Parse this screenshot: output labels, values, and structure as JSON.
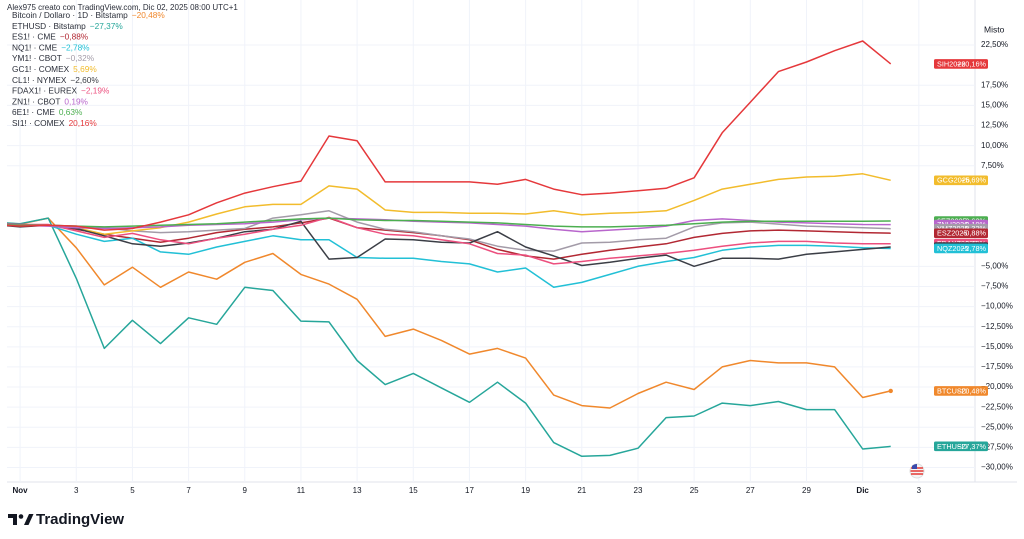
{
  "watermark": "Alex975 creato con TradingView.com, Dic 02, 2025 08:00 UTC+1",
  "brand": "TradingView",
  "chart_data": {
    "type": "line",
    "scale_mode": "Misto",
    "categories": [
      null,
      "Nov",
      null,
      "3",
      null,
      "5",
      null,
      "7",
      null,
      "9",
      null,
      "11",
      null,
      "13",
      null,
      "15",
      null,
      "17",
      null,
      "19",
      null,
      "21",
      null,
      "23",
      null,
      "25",
      null,
      "27",
      null,
      "29",
      null,
      "Dic",
      null,
      "3",
      null
    ],
    "ylim": [
      -31.8,
      28.1
    ],
    "yticks": [
      {
        "value": 22.5,
        "label": "22,50%"
      },
      {
        "value": 17.5,
        "label": "17,50%"
      },
      {
        "value": 15,
        "label": "15,00%"
      },
      {
        "value": 12.5,
        "label": "12,50%"
      },
      {
        "value": 10,
        "label": "10,00%"
      },
      {
        "value": 7.5,
        "label": "7,50%"
      },
      {
        "value": -5,
        "label": "−5,00%"
      },
      {
        "value": -7.5,
        "label": "−7,50%"
      },
      {
        "value": -10,
        "label": "−10,00%"
      },
      {
        "value": -12.5,
        "label": "−12,50%"
      },
      {
        "value": -15,
        "label": "−15,00%"
      },
      {
        "value": -17.5,
        "label": "−17,50%"
      },
      {
        "value": -20,
        "label": "−20,00%"
      },
      {
        "value": -22.5,
        "label": "−22,50%"
      },
      {
        "value": -25,
        "label": "−25,00%"
      },
      {
        "value": -27.5,
        "label": "−27,50%"
      },
      {
        "value": -30,
        "label": "−30,00%"
      }
    ],
    "grid": true,
    "series": [
      {
        "name": "Bitcoin / Dollaro · 1D · Bitstamp",
        "legend_value": "−20,48%",
        "tag": "BTCUSD",
        "tag_value": "−20,48%",
        "color": "#f0882c",
        "values": [
          0.5,
          0.25,
          1.0,
          -2.7,
          -7.3,
          -5.1,
          -7.6,
          -5.7,
          -6.6,
          -4.5,
          -3.4,
          -6.0,
          -7.2,
          -9.1,
          -13.7,
          -12.8,
          -14.2,
          -15.9,
          -15.2,
          -16.4,
          -21.0,
          -22.3,
          -22.6,
          -20.8,
          -19.4,
          -20.3,
          -17.5,
          -16.7,
          -17.0,
          -17.0,
          -17.5,
          -21.3,
          -20.48,
          null,
          null
        ]
      },
      {
        "name": "ETHUSD · Bitstamp",
        "legend_value": "−27,37%",
        "tag": "ETHUSD",
        "tag_value": "−27,37%",
        "color": "#26a69a",
        "values": [
          0.5,
          0.3,
          1.0,
          -6.5,
          -15.2,
          -11.7,
          -14.6,
          -11.4,
          -12.2,
          -7.6,
          -8.0,
          -11.8,
          -11.9,
          -16.7,
          -19.7,
          -18.3,
          -20.1,
          -21.9,
          -19.4,
          -22.0,
          -26.9,
          -28.6,
          -28.5,
          -27.6,
          -23.8,
          -23.6,
          -22.0,
          -22.3,
          -21.8,
          -22.8,
          -22.8,
          -27.7,
          -27.37,
          null,
          null
        ]
      },
      {
        "name": "ES1! · CME",
        "legend_value": "−0,88%",
        "tag": "ESZ2025",
        "tag_value": "−0,88%",
        "color": "#b22833",
        "values": [
          0.2,
          0.1,
          0.1,
          -0.4,
          -1.0,
          -1.5,
          -2.0,
          -1.5,
          -0.8,
          -0.4,
          -0.1,
          0.4,
          1.0,
          -0.2,
          -0.5,
          -0.8,
          -1.2,
          -1.7,
          -2.9,
          -3.7,
          -4.1,
          -3.5,
          -3.0,
          -2.6,
          -2.2,
          -1.4,
          -0.9,
          -0.6,
          -0.5,
          -0.6,
          -0.7,
          -0.8,
          -0.88,
          null,
          null
        ]
      },
      {
        "name": "NQ1! · CME",
        "legend_value": "−2,78%",
        "tag": "NQZ2025",
        "tag_value": "−2,78%",
        "color": "#22c0d6",
        "values": [
          0.2,
          0.0,
          0.1,
          -1.0,
          -1.9,
          -1.5,
          -3.2,
          -3.5,
          -2.6,
          -1.9,
          -1.2,
          -1.7,
          -1.7,
          -3.9,
          -4.0,
          -4.0,
          -4.4,
          -4.7,
          -5.7,
          -5.2,
          -7.6,
          -7.0,
          -6.0,
          -5.0,
          -4.4,
          -3.9,
          -3.0,
          -2.6,
          -2.4,
          -2.4,
          -2.5,
          -2.7,
          -2.78,
          null,
          null
        ]
      },
      {
        "name": "YM1! · CBOT",
        "legend_value": "−0,32%",
        "tag": "YMZ2025",
        "tag_value": "−0,32%",
        "color": "#a39ba8",
        "values": [
          0.3,
          0.1,
          0.1,
          0.0,
          -0.2,
          -0.6,
          -0.8,
          -0.7,
          -0.5,
          -0.3,
          1.0,
          1.4,
          1.9,
          0.5,
          -0.4,
          -0.7,
          -1.2,
          -1.6,
          -2.5,
          -3.0,
          -3.1,
          -2.1,
          -2.0,
          -1.7,
          -1.5,
          -0.1,
          0.4,
          0.5,
          0.25,
          0.0,
          -0.1,
          -0.2,
          -0.32,
          null,
          null
        ]
      },
      {
        "name": "GC1! · COMEX",
        "legend_value": "5,69%",
        "tag": "GCG2026",
        "tag_value": "+5,69%",
        "color": "#f2bc2c",
        "values": [
          0.2,
          0.0,
          0.1,
          -0.2,
          -1.0,
          -0.6,
          -0.2,
          0.5,
          1.5,
          2.4,
          2.7,
          2.7,
          5.0,
          4.6,
          2.0,
          1.7,
          1.7,
          1.6,
          1.6,
          1.5,
          1.9,
          1.4,
          1.6,
          1.7,
          1.9,
          3.2,
          4.6,
          5.2,
          5.8,
          6.1,
          6.2,
          6.5,
          5.69,
          null,
          null
        ]
      },
      {
        "name": "CL1! · NYMEX",
        "legend_value": "−2,60%",
        "tag": "CLF2026",
        "tag_value": "−2,60%",
        "color": "#3b3e46",
        "values": [
          0.2,
          -0.1,
          0.1,
          -0.3,
          -1.2,
          -2.2,
          -2.5,
          -2.1,
          -1.5,
          -0.7,
          -0.4,
          0.6,
          -4.1,
          -3.9,
          -1.6,
          -1.7,
          -2.0,
          -2.1,
          -0.7,
          -2.6,
          -3.7,
          -4.9,
          -4.5,
          -4.0,
          -3.6,
          -5.0,
          -4.0,
          -4.0,
          -4.1,
          -3.5,
          -3.2,
          -2.9,
          -2.6,
          null,
          null
        ]
      },
      {
        "name": "FDAX1! · EUREX",
        "legend_value": "−2,19%",
        "tag": "FDAXZ2025",
        "tag_value": "−2,19%",
        "color": "#ec4f7e",
        "values": [
          0.3,
          0.2,
          0.2,
          -0.6,
          -1.4,
          -0.9,
          -1.7,
          -2.2,
          -1.5,
          -1.0,
          -0.4,
          0.1,
          1.1,
          -0.2,
          -1.0,
          -1.2,
          -1.7,
          -2.2,
          -3.4,
          -3.6,
          -4.7,
          -4.4,
          -4.0,
          -3.7,
          -3.4,
          -3.0,
          -2.5,
          -2.1,
          -1.9,
          -1.9,
          -2.1,
          -2.2,
          -2.19,
          null,
          null
        ]
      },
      {
        "name": "ZN1! · CBOT",
        "legend_value": "0,19%",
        "tag": "ZNH2026",
        "tag_value": "+0,19%",
        "color": "#b866cc",
        "values": [
          0.2,
          0.1,
          0.0,
          -0.2,
          -0.3,
          -0.2,
          -0.1,
          0.1,
          0.2,
          0.3,
          0.5,
          0.8,
          1.0,
          0.9,
          0.8,
          0.6,
          0.5,
          0.4,
          0.2,
          0.0,
          -0.4,
          -0.7,
          -0.5,
          -0.3,
          0.0,
          0.7,
          0.9,
          0.7,
          0.5,
          0.4,
          0.3,
          0.2,
          0.19,
          null,
          null
        ]
      },
      {
        "name": "6E1! · CME",
        "legend_value": "0,63%",
        "tag": "6EZ2025",
        "tag_value": "+0,63%",
        "color": "#4caf50",
        "values": [
          0.2,
          0.1,
          0.1,
          0.0,
          -0.1,
          0.0,
          0.1,
          0.2,
          0.3,
          0.5,
          0.7,
          0.9,
          1.0,
          0.8,
          0.7,
          0.7,
          0.6,
          0.5,
          0.4,
          0.2,
          0.0,
          -0.1,
          -0.1,
          0.0,
          0.1,
          0.3,
          0.5,
          0.6,
          0.6,
          0.6,
          0.6,
          0.6,
          0.63,
          null,
          null
        ]
      },
      {
        "name": "SI1! · COMEX",
        "legend_value": "20,16%",
        "tag": "SIH2026",
        "tag_value": "+20,16%",
        "color": "#e5383b",
        "values": [
          0.2,
          0.0,
          0.1,
          0.0,
          -0.5,
          -0.3,
          0.5,
          1.4,
          2.9,
          4.1,
          4.9,
          5.6,
          11.2,
          10.6,
          5.5,
          5.5,
          5.5,
          5.5,
          5.2,
          5.8,
          4.6,
          3.9,
          4.1,
          4.4,
          4.7,
          6.0,
          11.6,
          15.4,
          19.2,
          20.4,
          21.8,
          23.0,
          20.16,
          null,
          null
        ]
      }
    ]
  }
}
